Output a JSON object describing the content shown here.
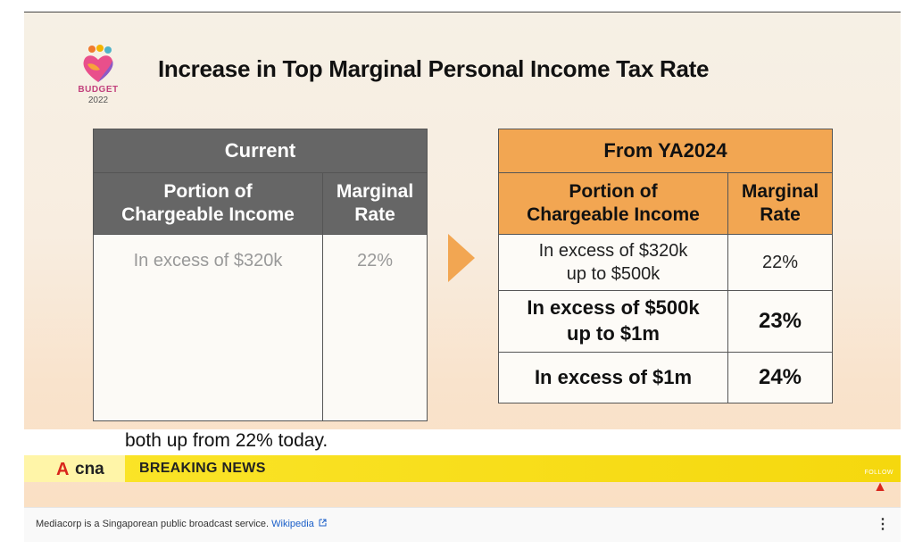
{
  "slide": {
    "title": "Increase in Top Marginal Personal Income Tax Rate",
    "logo_line1": "BUDGET",
    "logo_line2": "2022"
  },
  "current_table": {
    "heading": "Current",
    "col1_line1": "Portion of",
    "col1_line2": "Chargeable Income",
    "col2_line1": "Marginal",
    "col2_line2": "Rate",
    "rows": [
      {
        "income": "In excess of $320k",
        "rate": "22%"
      }
    ]
  },
  "new_table": {
    "heading": "From YA2024",
    "col1_line1": "Portion of",
    "col1_line2": "Chargeable Income",
    "col2_line1": "Marginal",
    "col2_line2": "Rate",
    "rows": [
      {
        "income_line1": "In excess of $320k",
        "income_line2": "up to $500k",
        "rate": "22%"
      },
      {
        "income_line1": "In excess of $500k",
        "income_line2": "up to $1m",
        "rate": "23%"
      },
      {
        "income_line1": "In excess of $1m",
        "rate": "24%"
      }
    ]
  },
  "caption": "both up from 22% today.",
  "ticker": {
    "brand_letter": "A",
    "brand": "cna",
    "label": "BREAKING NEWS",
    "follow": "FOLLOW"
  },
  "info_panel": {
    "text": "Mediacorp is a Singaporean public broadcast service.",
    "link": "Wikipedia",
    "menu_icon": "more-vert-icon"
  },
  "colors": {
    "accent_orange": "#f2a652",
    "table_gray": "#666666",
    "ticker_yellow": "#fbe52a",
    "cna_red": "#d9261c",
    "link_blue": "#1a5fc9"
  }
}
